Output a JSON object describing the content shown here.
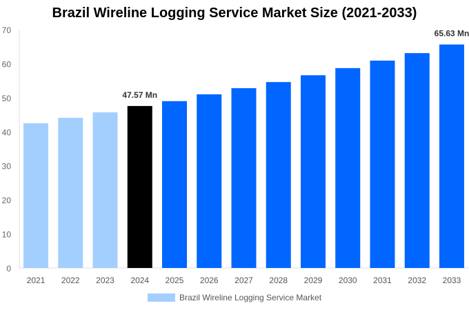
{
  "chart_data": {
    "type": "bar",
    "title": "Brazil Wireline Logging Service Market Size (2021-2033)",
    "categories": [
      "2021",
      "2022",
      "2023",
      "2024",
      "2025",
      "2026",
      "2027",
      "2028",
      "2029",
      "2030",
      "2031",
      "2032",
      "2033"
    ],
    "series": [
      {
        "name": "Brazil Wireline Logging Service Market",
        "values": [
          42.5,
          44.1,
          45.7,
          47.57,
          49.0,
          51.0,
          52.8,
          54.6,
          56.6,
          58.7,
          60.9,
          63.1,
          65.63
        ]
      }
    ],
    "bar_colors": [
      "#a3cfff",
      "#a3cfff",
      "#a3cfff",
      "#000000",
      "#0066ff",
      "#0066ff",
      "#0066ff",
      "#0066ff",
      "#0066ff",
      "#0066ff",
      "#0066ff",
      "#0066ff",
      "#0066ff"
    ],
    "data_labels": {
      "3": "47.57 Mn",
      "12": "65.63 Mn"
    },
    "yticks": [
      0,
      10,
      20,
      30,
      40,
      50,
      60,
      70
    ],
    "ylim": [
      0,
      70
    ],
    "xlabel": "",
    "ylabel": "",
    "grid": false,
    "legend_position": "bottom",
    "legend_color": "#a3cfff"
  }
}
